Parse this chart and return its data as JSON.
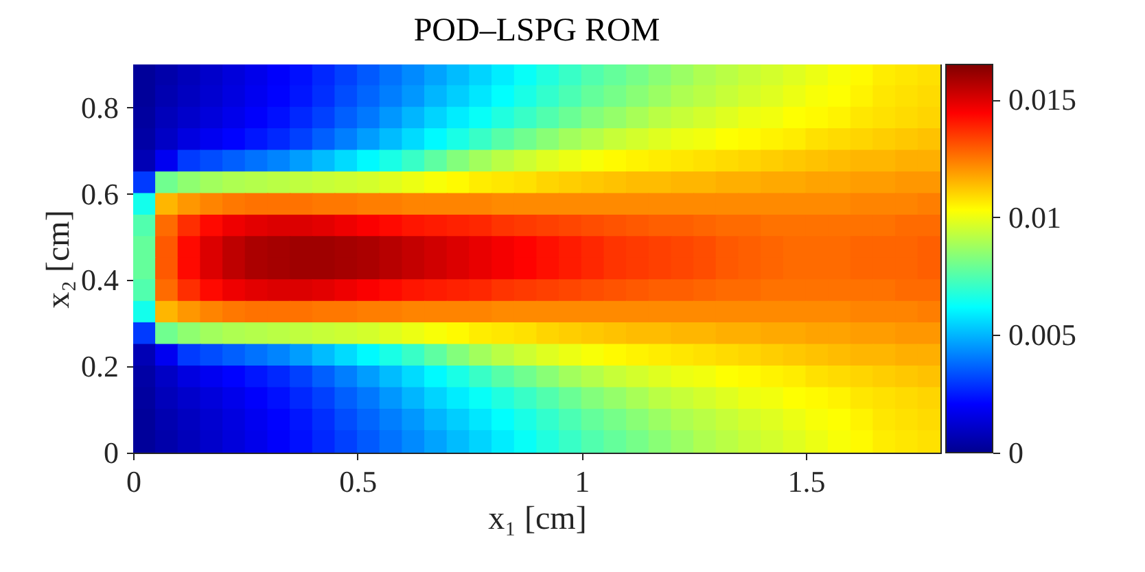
{
  "chart_data": {
    "type": "scatter",
    "title": "POD–LSPG ROM",
    "xlabel": "x₁ [cm]",
    "ylabel": "x₂ [cm]",
    "marker": "square",
    "x": [
      0.025,
      0.075,
      0.125,
      0.175,
      0.225,
      0.275,
      0.325,
      0.375,
      0.425,
      0.475,
      0.525,
      0.575,
      0.625,
      0.675,
      0.725,
      0.775,
      0.825,
      0.875,
      0.925,
      0.975,
      1.025,
      1.075,
      1.125,
      1.175,
      1.225,
      1.275,
      1.325,
      1.375,
      1.425,
      1.475,
      1.525,
      1.575,
      1.625,
      1.675,
      1.725,
      1.775,
      0.025,
      0.075,
      0.125,
      0.175,
      0.225,
      0.275,
      0.325,
      0.375,
      0.425,
      0.475,
      0.525,
      0.575,
      0.625,
      0.675,
      0.725,
      0.775,
      0.825,
      0.875,
      0.925,
      0.975,
      1.025,
      1.075,
      1.125,
      1.175,
      1.225,
      1.275,
      1.325,
      1.375,
      1.425,
      1.475,
      1.525,
      1.575,
      1.625,
      1.675,
      1.725,
      1.775,
      0.025,
      0.075,
      0.125,
      0.175,
      0.225,
      0.275,
      0.325,
      0.375,
      0.425,
      0.475,
      0.525,
      0.575,
      0.625,
      0.675,
      0.725,
      0.775,
      0.825,
      0.875,
      0.925,
      0.975,
      1.025,
      1.075,
      1.125,
      1.175,
      1.225,
      1.275,
      1.325,
      1.375,
      1.425,
      1.475,
      1.525,
      1.575,
      1.625,
      1.675,
      1.725,
      1.775,
      0.025,
      0.075,
      0.125,
      0.175,
      0.225,
      0.275,
      0.325,
      0.375,
      0.425,
      0.475,
      0.525,
      0.575,
      0.625,
      0.675,
      0.725,
      0.775,
      0.825,
      0.875,
      0.925,
      0.975,
      1.025,
      1.075,
      1.125,
      1.175,
      1.225,
      1.275,
      1.325,
      1.375,
      1.425,
      1.475,
      1.525,
      1.575,
      1.625,
      1.675,
      1.725,
      1.775,
      0.025,
      0.075,
      0.125,
      0.175,
      0.225,
      0.275,
      0.325,
      0.375,
      0.425,
      0.475,
      0.525,
      0.575,
      0.625,
      0.675,
      0.725,
      0.775,
      0.825,
      0.875,
      0.925,
      0.975,
      1.025,
      1.075,
      1.125,
      1.175,
      1.225,
      1.275,
      1.325,
      1.375,
      1.425,
      1.475,
      1.525,
      1.575,
      1.625,
      1.675,
      1.725,
      1.775,
      0.025,
      0.075,
      0.125,
      0.175,
      0.225,
      0.275,
      0.325,
      0.375,
      0.425,
      0.475,
      0.525,
      0.575,
      0.625,
      0.675,
      0.725,
      0.775,
      0.825,
      0.875,
      0.925,
      0.975,
      1.025,
      1.075,
      1.125,
      1.175,
      1.225,
      1.275,
      1.325,
      1.375,
      1.425,
      1.475,
      1.525,
      1.575,
      1.625,
      1.675,
      1.725,
      1.775,
      0.025,
      0.075,
      0.125,
      0.175,
      0.225,
      0.275,
      0.325,
      0.375,
      0.425,
      0.475,
      0.525,
      0.575,
      0.625,
      0.675,
      0.725,
      0.775,
      0.825,
      0.875,
      0.925,
      0.975,
      1.025,
      1.075,
      1.125,
      1.175,
      1.225,
      1.275,
      1.325,
      1.375,
      1.425,
      1.475,
      1.525,
      1.575,
      1.625,
      1.675,
      1.725,
      1.775,
      0.025,
      0.075,
      0.125,
      0.175,
      0.225,
      0.275,
      0.325,
      0.375,
      0.425,
      0.475,
      0.525,
      0.575,
      0.625,
      0.675,
      0.725,
      0.775,
      0.825,
      0.875,
      0.925,
      0.975,
      1.025,
      1.075,
      1.125,
      1.175,
      1.225,
      1.275,
      1.325,
      1.375,
      1.425,
      1.475,
      1.525,
      1.575,
      1.625,
      1.675,
      1.725,
      1.775,
      0.025,
      0.075,
      0.125,
      0.175,
      0.225,
      0.275,
      0.325,
      0.375,
      0.425,
      0.475,
      0.525,
      0.575,
      0.625,
      0.675,
      0.725,
      0.775,
      0.825,
      0.875,
      0.925,
      0.975,
      1.025,
      1.075,
      1.125,
      1.175,
      1.225,
      1.275,
      1.325,
      1.375,
      1.425,
      1.475,
      1.525,
      1.575,
      1.625,
      1.675,
      1.725,
      1.775,
      0.025,
      0.075,
      0.125,
      0.175,
      0.225,
      0.275,
      0.325,
      0.375,
      0.425,
      0.475,
      0.525,
      0.575,
      0.625,
      0.675,
      0.725,
      0.775,
      0.825,
      0.875,
      0.925,
      0.975,
      1.025,
      1.075,
      1.125,
      1.175,
      1.225,
      1.275,
      1.325,
      1.375,
      1.425,
      1.475,
      1.525,
      1.575,
      1.625,
      1.675,
      1.725,
      1.775,
      0.025,
      0.075,
      0.125,
      0.175,
      0.225,
      0.275,
      0.325,
      0.375,
      0.425,
      0.475,
      0.525,
      0.575,
      0.625,
      0.675,
      0.725,
      0.775,
      0.825,
      0.875,
      0.925,
      0.975,
      1.025,
      1.075,
      1.125,
      1.175,
      1.225,
      1.275,
      1.325,
      1.375,
      1.425,
      1.475,
      1.525,
      1.575,
      1.625,
      1.675,
      1.725,
      1.775,
      0.025,
      0.075,
      0.125,
      0.175,
      0.225,
      0.275,
      0.325,
      0.375,
      0.425,
      0.475,
      0.525,
      0.575,
      0.625,
      0.675,
      0.725,
      0.775,
      0.825,
      0.875,
      0.925,
      0.975,
      1.025,
      1.075,
      1.125,
      1.175,
      1.225,
      1.275,
      1.325,
      1.375,
      1.425,
      1.475,
      1.525,
      1.575,
      1.625,
      1.675,
      1.725,
      1.775,
      0.025,
      0.075,
      0.125,
      0.175,
      0.225,
      0.275,
      0.325,
      0.375,
      0.425,
      0.475,
      0.525,
      0.575,
      0.625,
      0.675,
      0.725,
      0.775,
      0.825,
      0.875,
      0.925,
      0.975,
      1.025,
      1.075,
      1.125,
      1.175,
      1.225,
      1.275,
      1.325,
      1.375,
      1.425,
      1.475,
      1.525,
      1.575,
      1.625,
      1.675,
      1.725,
      1.775,
      0.025,
      0.075,
      0.125,
      0.175,
      0.225,
      0.275,
      0.325,
      0.375,
      0.425,
      0.475,
      0.525,
      0.575,
      0.625,
      0.675,
      0.725,
      0.775,
      0.825,
      0.875,
      0.925,
      0.975,
      1.025,
      1.075,
      1.125,
      1.175,
      1.225,
      1.275,
      1.325,
      1.375,
      1.425,
      1.475,
      1.525,
      1.575,
      1.625,
      1.675,
      1.725,
      1.775,
      0.025,
      0.075,
      0.125,
      0.175,
      0.225,
      0.275,
      0.325,
      0.375,
      0.425,
      0.475,
      0.525,
      0.575,
      0.625,
      0.675,
      0.725,
      0.775,
      0.825,
      0.875,
      0.925,
      0.975,
      1.025,
      1.075,
      1.125,
      1.175,
      1.225,
      1.275,
      1.325,
      1.375,
      1.425,
      1.475,
      1.525,
      1.575,
      1.625,
      1.675,
      1.725,
      1.775,
      0.025,
      0.075,
      0.125,
      0.175,
      0.225,
      0.275,
      0.325,
      0.375,
      0.425,
      0.475,
      0.525,
      0.575,
      0.625,
      0.675,
      0.725,
      0.775,
      0.825,
      0.875,
      0.925,
      0.975,
      1.025,
      1.075,
      1.125,
      1.175,
      1.225,
      1.275,
      1.325,
      1.375,
      1.425,
      1.475,
      1.525,
      1.575,
      1.625,
      1.675,
      1.725,
      1.775,
      0.025,
      0.075,
      0.125,
      0.175,
      0.225,
      0.275,
      0.325,
      0.375,
      0.425,
      0.475,
      0.525,
      0.575,
      0.625,
      0.675,
      0.725,
      0.775,
      0.825,
      0.875,
      0.925,
      0.975,
      1.025,
      1.075,
      1.125,
      1.175,
      1.225,
      1.275,
      1.325,
      1.375,
      1.425,
      1.475,
      1.525,
      1.575,
      1.625,
      1.675,
      1.725,
      1.775,
      0.025,
      0.075,
      0.125,
      0.175,
      0.225,
      0.275,
      0.325,
      0.375,
      0.425,
      0.475,
      0.525,
      0.575,
      0.625,
      0.675,
      0.725,
      0.775,
      0.825,
      0.875,
      0.925,
      0.975,
      1.025,
      1.075,
      1.125,
      1.175,
      1.225,
      1.275,
      1.325,
      1.375,
      1.425,
      1.475,
      1.525,
      1.575,
      1.625,
      1.675,
      1.725,
      1.775
    ],
    "values": [
      0.875,
      0.875,
      0.875,
      0.875,
      0.875,
      0.875,
      0.875,
      0.875,
      0.875,
      0.875,
      0.875,
      0.875,
      0.875,
      0.875,
      0.875,
      0.875,
      0.875,
      0.875,
      0.875,
      0.875,
      0.875,
      0.875,
      0.875,
      0.875,
      0.875,
      0.875,
      0.875,
      0.875,
      0.875,
      0.875,
      0.875,
      0.875,
      0.875,
      0.875,
      0.875,
      0.875,
      0.825,
      0.825,
      0.825,
      0.825,
      0.825,
      0.825,
      0.825,
      0.825,
      0.825,
      0.825,
      0.825,
      0.825,
      0.825,
      0.825,
      0.825,
      0.825,
      0.825,
      0.825,
      0.825,
      0.825,
      0.825,
      0.825,
      0.825,
      0.825,
      0.825,
      0.825,
      0.825,
      0.825,
      0.825,
      0.825,
      0.825,
      0.825,
      0.825,
      0.825,
      0.825,
      0.825,
      0.775,
      0.775,
      0.775,
      0.775,
      0.775,
      0.775,
      0.775,
      0.775,
      0.775,
      0.775,
      0.775,
      0.775,
      0.775,
      0.775,
      0.775,
      0.775,
      0.775,
      0.775,
      0.775,
      0.775,
      0.775,
      0.775,
      0.775,
      0.775,
      0.775,
      0.775,
      0.775,
      0.775,
      0.775,
      0.775,
      0.775,
      0.775,
      0.775,
      0.775,
      0.775,
      0.775,
      0.725,
      0.725,
      0.725,
      0.725,
      0.725,
      0.725,
      0.725,
      0.725,
      0.725,
      0.725,
      0.725,
      0.725,
      0.725,
      0.725,
      0.725,
      0.725,
      0.725,
      0.725,
      0.725,
      0.725,
      0.725,
      0.725,
      0.725,
      0.725,
      0.725,
      0.725,
      0.725,
      0.725,
      0.725,
      0.725,
      0.725,
      0.725,
      0.725,
      0.725,
      0.725,
      0.725,
      0.675,
      0.675,
      0.675,
      0.675,
      0.675,
      0.675,
      0.675,
      0.675,
      0.675,
      0.675,
      0.675,
      0.675,
      0.675,
      0.675,
      0.675,
      0.675,
      0.675,
      0.675,
      0.675,
      0.675,
      0.675,
      0.675,
      0.675,
      0.675,
      0.675,
      0.675,
      0.675,
      0.675,
      0.675,
      0.675,
      0.675,
      0.675,
      0.675,
      0.675,
      0.675,
      0.675,
      0.625,
      0.625,
      0.625,
      0.625,
      0.625,
      0.625,
      0.625,
      0.625,
      0.625,
      0.625,
      0.625,
      0.625,
      0.625,
      0.625,
      0.625,
      0.625,
      0.625,
      0.625,
      0.625,
      0.625,
      0.625,
      0.625,
      0.625,
      0.625,
      0.625,
      0.625,
      0.625,
      0.625,
      0.625,
      0.625,
      0.625,
      0.625,
      0.625,
      0.625,
      0.625,
      0.625,
      0.575,
      0.575,
      0.575,
      0.575,
      0.575,
      0.575,
      0.575,
      0.575,
      0.575,
      0.575,
      0.575,
      0.575,
      0.575,
      0.575,
      0.575,
      0.575,
      0.575,
      0.575,
      0.575,
      0.575,
      0.575,
      0.575,
      0.575,
      0.575,
      0.575,
      0.575,
      0.575,
      0.575,
      0.575,
      0.575,
      0.575,
      0.575,
      0.575,
      0.575,
      0.575,
      0.575,
      0.525,
      0.525,
      0.525,
      0.525,
      0.525,
      0.525,
      0.525,
      0.525,
      0.525,
      0.525,
      0.525,
      0.525,
      0.525,
      0.525,
      0.525,
      0.525,
      0.525,
      0.525,
      0.525,
      0.525,
      0.525,
      0.525,
      0.525,
      0.525,
      0.525,
      0.525,
      0.525,
      0.525,
      0.525,
      0.525,
      0.525,
      0.525,
      0.525,
      0.525,
      0.525,
      0.525,
      0.475,
      0.475,
      0.475,
      0.475,
      0.475,
      0.475,
      0.475,
      0.475,
      0.475,
      0.475,
      0.475,
      0.475,
      0.475,
      0.475,
      0.475,
      0.475,
      0.475,
      0.475,
      0.475,
      0.475,
      0.475,
      0.475,
      0.475,
      0.475,
      0.475,
      0.475,
      0.475,
      0.475,
      0.475,
      0.475,
      0.475,
      0.475,
      0.475,
      0.475,
      0.475,
      0.475,
      0.425,
      0.425,
      0.425,
      0.425,
      0.425,
      0.425,
      0.425,
      0.425,
      0.425,
      0.425,
      0.425,
      0.425,
      0.425,
      0.425,
      0.425,
      0.425,
      0.425,
      0.425,
      0.425,
      0.425,
      0.425,
      0.425,
      0.425,
      0.425,
      0.425,
      0.425,
      0.425,
      0.425,
      0.425,
      0.425,
      0.425,
      0.425,
      0.425,
      0.425,
      0.425,
      0.425,
      0.375,
      0.375,
      0.375,
      0.375,
      0.375,
      0.375,
      0.375,
      0.375,
      0.375,
      0.375,
      0.375,
      0.375,
      0.375,
      0.375,
      0.375,
      0.375,
      0.375,
      0.375,
      0.375,
      0.375,
      0.375,
      0.375,
      0.375,
      0.375,
      0.375,
      0.375,
      0.375,
      0.375,
      0.375,
      0.375,
      0.375,
      0.375,
      0.375,
      0.375,
      0.375,
      0.375,
      0.325,
      0.325,
      0.325,
      0.325,
      0.325,
      0.325,
      0.325,
      0.325,
      0.325,
      0.325,
      0.325,
      0.325,
      0.325,
      0.325,
      0.325,
      0.325,
      0.325,
      0.325,
      0.325,
      0.325,
      0.325,
      0.325,
      0.325,
      0.325,
      0.325,
      0.325,
      0.325,
      0.325,
      0.325,
      0.325,
      0.325,
      0.325,
      0.325,
      0.325,
      0.325,
      0.325,
      0.275,
      0.275,
      0.275,
      0.275,
      0.275,
      0.275,
      0.275,
      0.275,
      0.275,
      0.275,
      0.275,
      0.275,
      0.275,
      0.275,
      0.275,
      0.275,
      0.275,
      0.275,
      0.275,
      0.275,
      0.275,
      0.275,
      0.275,
      0.275,
      0.275,
      0.275,
      0.275,
      0.275,
      0.275,
      0.275,
      0.275,
      0.275,
      0.275,
      0.275,
      0.275,
      0.275,
      0.225,
      0.225,
      0.225,
      0.225,
      0.225,
      0.225,
      0.225,
      0.225,
      0.225,
      0.225,
      0.225,
      0.225,
      0.225,
      0.225,
      0.225,
      0.225,
      0.225,
      0.225,
      0.225,
      0.225,
      0.225,
      0.225,
      0.225,
      0.225,
      0.225,
      0.225,
      0.225,
      0.225,
      0.225,
      0.225,
      0.225,
      0.225,
      0.225,
      0.225,
      0.225,
      0.225,
      0.175,
      0.175,
      0.175,
      0.175,
      0.175,
      0.175,
      0.175,
      0.175,
      0.175,
      0.175,
      0.175,
      0.175,
      0.175,
      0.175,
      0.175,
      0.175,
      0.175,
      0.175,
      0.175,
      0.175,
      0.175,
      0.175,
      0.175,
      0.175,
      0.175,
      0.175,
      0.175,
      0.175,
      0.175,
      0.175,
      0.175,
      0.175,
      0.175,
      0.175,
      0.175,
      0.175,
      0.125,
      0.125,
      0.125,
      0.125,
      0.125,
      0.125,
      0.125,
      0.125,
      0.125,
      0.125,
      0.125,
      0.125,
      0.125,
      0.125,
      0.125,
      0.125,
      0.125,
      0.125,
      0.125,
      0.125,
      0.125,
      0.125,
      0.125,
      0.125,
      0.125,
      0.125,
      0.125,
      0.125,
      0.125,
      0.125,
      0.125,
      0.125,
      0.125,
      0.125,
      0.125,
      0.125,
      0.075,
      0.075,
      0.075,
      0.075,
      0.075,
      0.075,
      0.075,
      0.075,
      0.075,
      0.075,
      0.075,
      0.075,
      0.075,
      0.075,
      0.075,
      0.075,
      0.075,
      0.075,
      0.075,
      0.075,
      0.075,
      0.075,
      0.075,
      0.075,
      0.075,
      0.075,
      0.075,
      0.075,
      0.075,
      0.075,
      0.075,
      0.075,
      0.075,
      0.075,
      0.075,
      0.075,
      0.025,
      0.025,
      0.025,
      0.025,
      0.025,
      0.025,
      0.025,
      0.025,
      0.025,
      0.025,
      0.025,
      0.025,
      0.025,
      0.025,
      0.025,
      0.025,
      0.025,
      0.025,
      0.025,
      0.025,
      0.025,
      0.025,
      0.025,
      0.025,
      0.025,
      0.025,
      0.025,
      0.025,
      0.025,
      0.025,
      0.025,
      0.025,
      0.025,
      0.025,
      0.025,
      0.025
    ],
    "cvalues": [
      0.0002,
      0.0005,
      0.0008,
      0.0011,
      0.0014,
      0.0017,
      0.002,
      0.0023,
      0.0027,
      0.0031,
      0.0035,
      0.0039,
      0.0043,
      0.0047,
      0.0051,
      0.0055,
      0.0059,
      0.0063,
      0.0067,
      0.0071,
      0.0075,
      0.0078,
      0.0081,
      0.0084,
      0.0087,
      0.009,
      0.0092,
      0.0094,
      0.0096,
      0.0098,
      0.01,
      0.0102,
      0.0104,
      0.0106,
      0.0107,
      0.0108,
      0.0002,
      0.0006,
      0.0009,
      0.0012,
      0.0015,
      0.0018,
      0.0021,
      0.0024,
      0.0028,
      0.0033,
      0.0037,
      0.0041,
      0.0045,
      0.005,
      0.0054,
      0.0058,
      0.0062,
      0.0066,
      0.007,
      0.0074,
      0.0078,
      0.0081,
      0.0084,
      0.0087,
      0.009,
      0.0092,
      0.0094,
      0.0096,
      0.0098,
      0.01,
      0.0102,
      0.0103,
      0.0105,
      0.0107,
      0.0108,
      0.0109,
      0.0003,
      0.0008,
      0.0011,
      0.0014,
      0.0017,
      0.002,
      0.0023,
      0.0027,
      0.0031,
      0.0036,
      0.004,
      0.0045,
      0.005,
      0.0055,
      0.0059,
      0.0063,
      0.0067,
      0.0071,
      0.0075,
      0.0079,
      0.0083,
      0.0086,
      0.0089,
      0.0092,
      0.0094,
      0.0096,
      0.0098,
      0.01,
      0.0101,
      0.0103,
      0.0104,
      0.0105,
      0.0107,
      0.0108,
      0.0109,
      0.011,
      0.0004,
      0.001,
      0.0015,
      0.0018,
      0.0021,
      0.0024,
      0.0027,
      0.0031,
      0.0036,
      0.0041,
      0.0046,
      0.0051,
      0.0056,
      0.0061,
      0.0066,
      0.0071,
      0.0076,
      0.008,
      0.0084,
      0.0088,
      0.0091,
      0.0094,
      0.0096,
      0.0098,
      0.01,
      0.0101,
      0.0103,
      0.0104,
      0.0105,
      0.0106,
      0.0108,
      0.0109,
      0.011,
      0.0111,
      0.0112,
      0.0113,
      0.0007,
      0.0018,
      0.003,
      0.0033,
      0.0036,
      0.0039,
      0.0042,
      0.0046,
      0.0051,
      0.0056,
      0.0061,
      0.0066,
      0.0071,
      0.0077,
      0.0083,
      0.0088,
      0.0092,
      0.0095,
      0.0098,
      0.01,
      0.0102,
      0.0104,
      0.0105,
      0.0106,
      0.0107,
      0.0108,
      0.0109,
      0.011,
      0.0111,
      0.0112,
      0.0113,
      0.0114,
      0.0115,
      0.0115,
      0.0116,
      0.0116,
      0.003,
      0.008,
      0.0085,
      0.0088,
      0.009,
      0.0091,
      0.0092,
      0.0093,
      0.0094,
      0.0095,
      0.0096,
      0.0098,
      0.01,
      0.0102,
      0.0104,
      0.0106,
      0.0107,
      0.0108,
      0.011,
      0.0111,
      0.0112,
      0.0113,
      0.0114,
      0.0114,
      0.0115,
      0.0115,
      0.0116,
      0.0116,
      0.0117,
      0.0117,
      0.0118,
      0.0118,
      0.0119,
      0.0119,
      0.012,
      0.012,
      0.0065,
      0.0115,
      0.012,
      0.0123,
      0.0125,
      0.0126,
      0.0126,
      0.0126,
      0.0125,
      0.0125,
      0.0124,
      0.0124,
      0.0123,
      0.0123,
      0.0123,
      0.0123,
      0.0122,
      0.0122,
      0.0122,
      0.0122,
      0.0122,
      0.0122,
      0.0122,
      0.0122,
      0.0122,
      0.0122,
      0.0122,
      0.0122,
      0.0122,
      0.0122,
      0.0122,
      0.0122,
      0.0123,
      0.0123,
      0.0123,
      0.0124,
      0.0075,
      0.0127,
      0.0137,
      0.0143,
      0.0147,
      0.0149,
      0.015,
      0.015,
      0.0149,
      0.0147,
      0.0145,
      0.0143,
      0.0141,
      0.014,
      0.0139,
      0.0138,
      0.0136,
      0.0135,
      0.0134,
      0.0133,
      0.0132,
      0.0131,
      0.013,
      0.0129,
      0.0129,
      0.0128,
      0.0127,
      0.0127,
      0.0126,
      0.0126,
      0.0126,
      0.0126,
      0.0126,
      0.0126,
      0.0127,
      0.0127,
      0.0078,
      0.013,
      0.0143,
      0.015,
      0.0155,
      0.0158,
      0.0159,
      0.016,
      0.016,
      0.0159,
      0.0158,
      0.0156,
      0.0154,
      0.0152,
      0.015,
      0.0148,
      0.0146,
      0.0144,
      0.0142,
      0.014,
      0.0138,
      0.0136,
      0.0135,
      0.0134,
      0.0133,
      0.0132,
      0.013,
      0.0129,
      0.0128,
      0.0127,
      0.0127,
      0.0127,
      0.0128,
      0.0128,
      0.0128,
      0.0129,
      0.0078,
      0.013,
      0.0143,
      0.015,
      0.0155,
      0.0158,
      0.0159,
      0.016,
      0.016,
      0.0159,
      0.0158,
      0.0156,
      0.0154,
      0.0152,
      0.015,
      0.0148,
      0.0146,
      0.0144,
      0.0142,
      0.014,
      0.0138,
      0.0136,
      0.0135,
      0.0134,
      0.0133,
      0.0132,
      0.013,
      0.0129,
      0.0128,
      0.0127,
      0.0127,
      0.0127,
      0.0128,
      0.0128,
      0.0128,
      0.0129,
      0.0075,
      0.0127,
      0.0137,
      0.0143,
      0.0147,
      0.0149,
      0.015,
      0.015,
      0.0149,
      0.0147,
      0.0145,
      0.0143,
      0.0141,
      0.014,
      0.0139,
      0.0138,
      0.0136,
      0.0135,
      0.0134,
      0.0133,
      0.0132,
      0.0131,
      0.013,
      0.0129,
      0.0129,
      0.0128,
      0.0127,
      0.0127,
      0.0126,
      0.0126,
      0.0126,
      0.0126,
      0.0126,
      0.0126,
      0.0127,
      0.0127,
      0.0065,
      0.0115,
      0.012,
      0.0123,
      0.0125,
      0.0126,
      0.0126,
      0.0126,
      0.0125,
      0.0125,
      0.0124,
      0.0124,
      0.0123,
      0.0123,
      0.0123,
      0.0123,
      0.0122,
      0.0122,
      0.0122,
      0.0122,
      0.0122,
      0.0122,
      0.0122,
      0.0122,
      0.0122,
      0.0122,
      0.0122,
      0.0122,
      0.0122,
      0.0122,
      0.0122,
      0.0122,
      0.0123,
      0.0123,
      0.0123,
      0.0124,
      0.003,
      0.008,
      0.0085,
      0.0088,
      0.009,
      0.0091,
      0.0092,
      0.0093,
      0.0094,
      0.0095,
      0.0096,
      0.0098,
      0.01,
      0.0102,
      0.0104,
      0.0106,
      0.0107,
      0.0108,
      0.011,
      0.0111,
      0.0112,
      0.0113,
      0.0114,
      0.0114,
      0.0115,
      0.0115,
      0.0116,
      0.0116,
      0.0117,
      0.0117,
      0.0118,
      0.0118,
      0.0119,
      0.0119,
      0.012,
      0.012,
      0.0007,
      0.0018,
      0.003,
      0.0033,
      0.0036,
      0.0039,
      0.0042,
      0.0046,
      0.0051,
      0.0056,
      0.0061,
      0.0066,
      0.0071,
      0.0077,
      0.0083,
      0.0088,
      0.0092,
      0.0095,
      0.0098,
      0.01,
      0.0102,
      0.0104,
      0.0105,
      0.0106,
      0.0107,
      0.0108,
      0.0109,
      0.011,
      0.0111,
      0.0112,
      0.0113,
      0.0114,
      0.0115,
      0.0115,
      0.0116,
      0.0116,
      0.0004,
      0.001,
      0.0015,
      0.0018,
      0.0021,
      0.0024,
      0.0027,
      0.0031,
      0.0036,
      0.0041,
      0.0046,
      0.0051,
      0.0056,
      0.0061,
      0.0066,
      0.0071,
      0.0076,
      0.008,
      0.0084,
      0.0088,
      0.0091,
      0.0094,
      0.0096,
      0.0098,
      0.01,
      0.0101,
      0.0103,
      0.0104,
      0.0105,
      0.0106,
      0.0108,
      0.0109,
      0.011,
      0.0111,
      0.0112,
      0.0113,
      0.0003,
      0.0008,
      0.0011,
      0.0014,
      0.0017,
      0.002,
      0.0023,
      0.0027,
      0.0031,
      0.0036,
      0.004,
      0.0045,
      0.005,
      0.0055,
      0.0059,
      0.0063,
      0.0067,
      0.0071,
      0.0075,
      0.0079,
      0.0083,
      0.0086,
      0.0089,
      0.0092,
      0.0094,
      0.0096,
      0.0098,
      0.01,
      0.0101,
      0.0103,
      0.0104,
      0.0105,
      0.0107,
      0.0108,
      0.0109,
      0.011,
      0.0002,
      0.0006,
      0.0009,
      0.0012,
      0.0015,
      0.0018,
      0.0021,
      0.0024,
      0.0028,
      0.0033,
      0.0037,
      0.0041,
      0.0045,
      0.005,
      0.0054,
      0.0058,
      0.0062,
      0.0066,
      0.007,
      0.0074,
      0.0078,
      0.0081,
      0.0084,
      0.0087,
      0.009,
      0.0092,
      0.0094,
      0.0096,
      0.0098,
      0.01,
      0.0102,
      0.0103,
      0.0105,
      0.0107,
      0.0108,
      0.0109,
      0.0002,
      0.0005,
      0.0008,
      0.0011,
      0.0014,
      0.0017,
      0.002,
      0.0023,
      0.0027,
      0.0031,
      0.0035,
      0.0039,
      0.0043,
      0.0047,
      0.0051,
      0.0055,
      0.0059,
      0.0063,
      0.0067,
      0.0071,
      0.0075,
      0.0078,
      0.0081,
      0.0084,
      0.0087,
      0.009,
      0.0092,
      0.0094,
      0.0096,
      0.0098,
      0.01,
      0.0102,
      0.0104,
      0.0106,
      0.0107,
      0.0108
    ],
    "xlim": [
      0,
      1.8
    ],
    "xticks": [
      0,
      0.5,
      1,
      1.5
    ],
    "ylim": [
      0,
      0.9
    ],
    "yticks": [
      0,
      0.2,
      0.4,
      0.6,
      0.8
    ],
    "clim": [
      0,
      0.0165
    ],
    "cticks": [
      0,
      0.005,
      0.01,
      0.015
    ]
  }
}
